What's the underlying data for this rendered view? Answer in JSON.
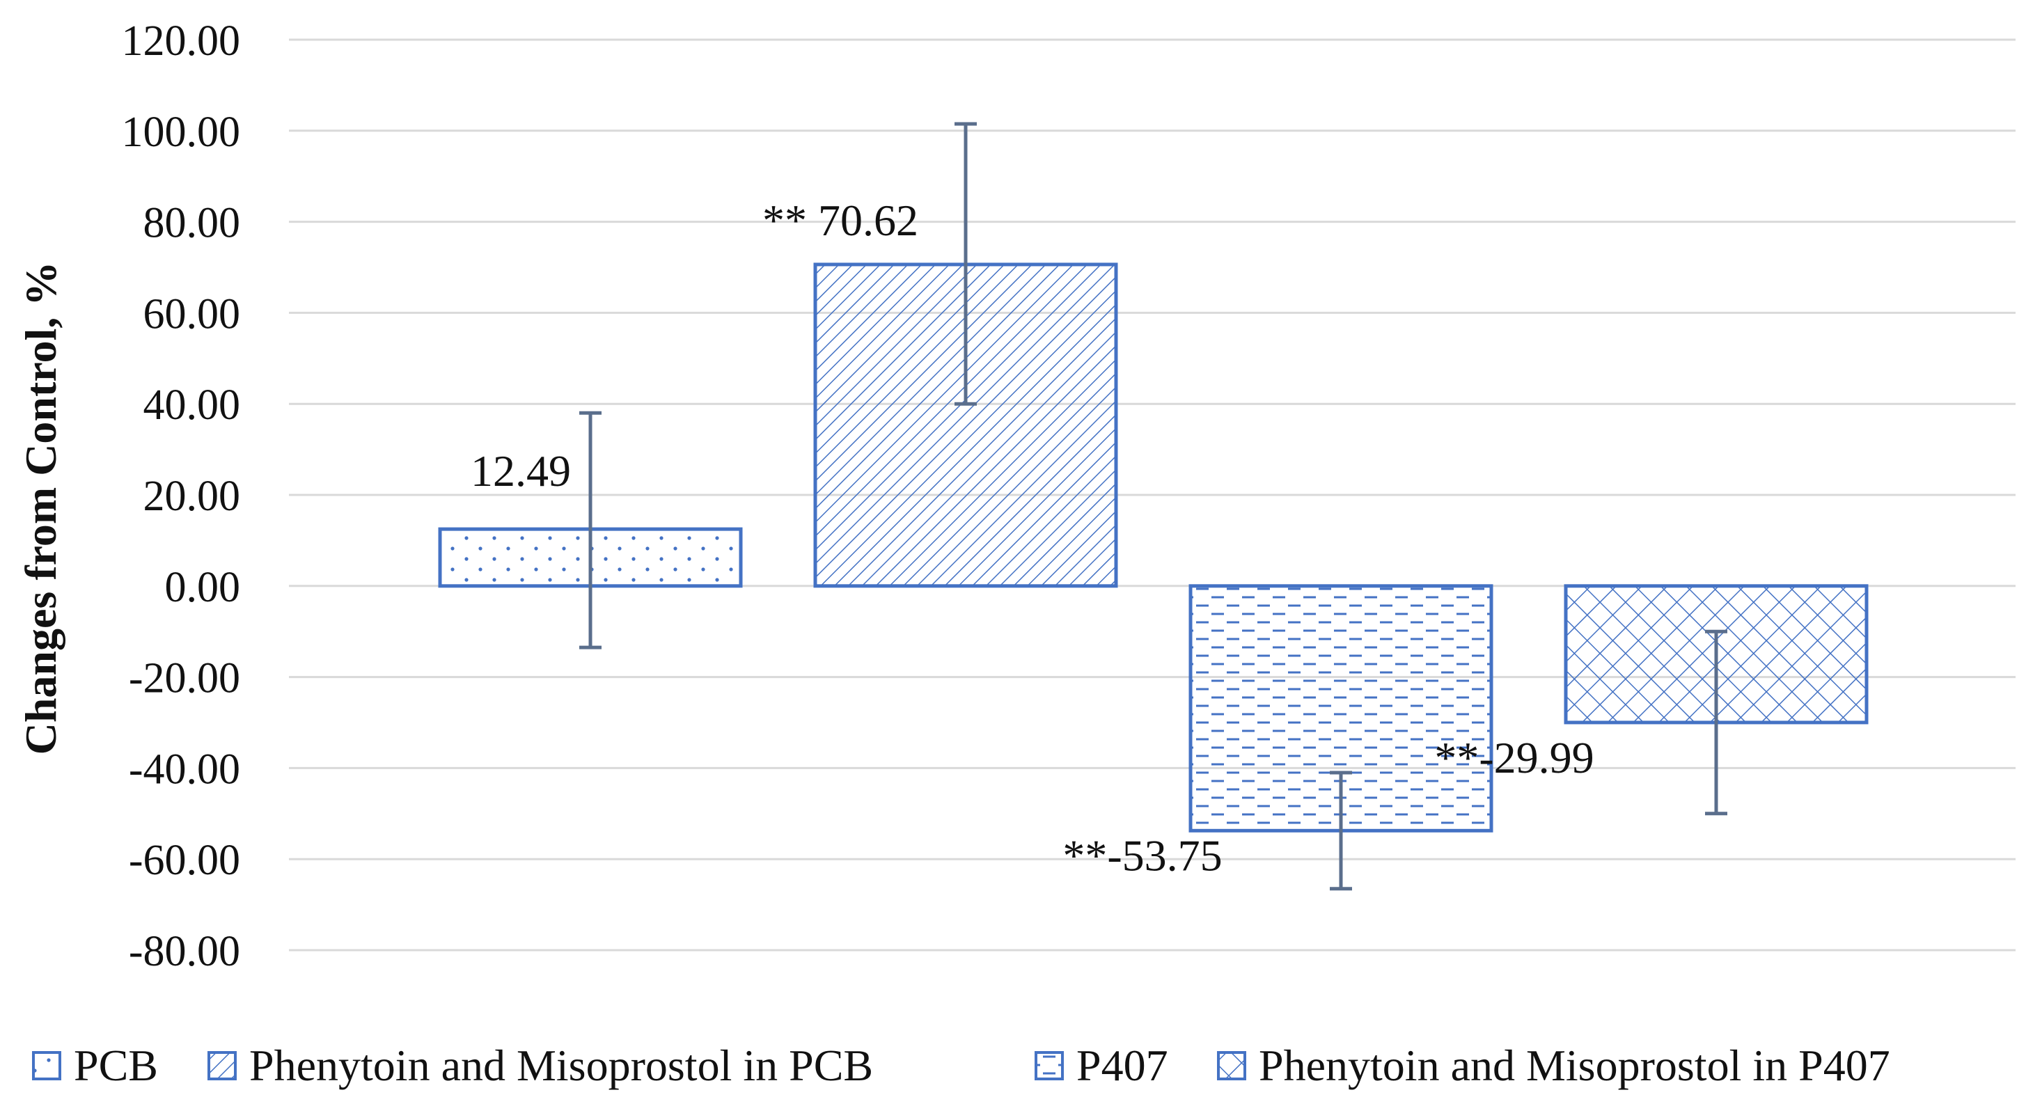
{
  "chart_data": {
    "type": "bar",
    "title": "",
    "xlabel": "",
    "ylabel": "Changes from Control, %",
    "ylim": [
      -80,
      120
    ],
    "y_ticks": [
      "120.00",
      "100.00",
      "80.00",
      "60.00",
      "40.00",
      "20.00",
      "0.00",
      "-20.00",
      "-40.00",
      "-60.00",
      "-80.00"
    ],
    "grid": true,
    "legend_position": "bottom",
    "series": [
      {
        "name": "PCB",
        "value": 12.49,
        "error_low": -13.5,
        "error_high": 38.0,
        "label": "12.49",
        "pattern": "dots"
      },
      {
        "name": "Phenytoin and Misoprostol in PCB",
        "value": 70.62,
        "error_low": 40.0,
        "error_high": 101.5,
        "label": "** 70.62",
        "pattern": "diagonal"
      },
      {
        "name": "P407",
        "value": -53.75,
        "error_low": -66.5,
        "error_high": -41.0,
        "label": "**-53.75",
        "pattern": "dashes"
      },
      {
        "name": "Phenytoin and Misoprostol in P407",
        "value": -29.99,
        "error_low": -50.0,
        "error_high": -10.0,
        "label": "**-29.99",
        "pattern": "crosshatch"
      }
    ],
    "colors": {
      "bar": "#4472c4",
      "error_bar": "#5a6e8c",
      "grid": "#d9d9d9"
    }
  }
}
